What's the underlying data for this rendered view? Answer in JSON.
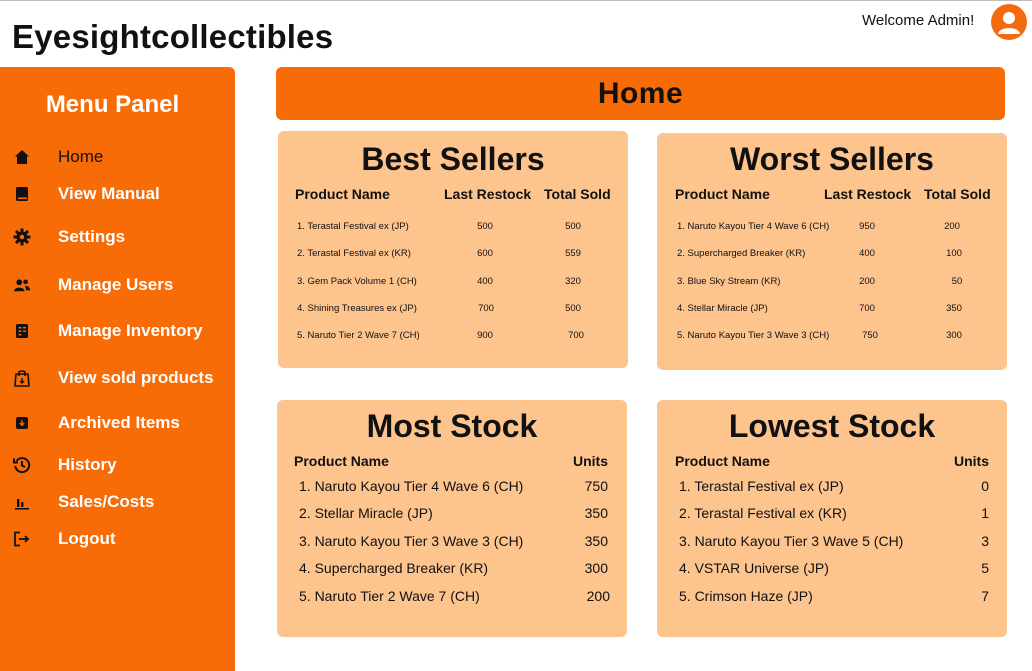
{
  "app": {
    "brand": "Eyesightcollectibles",
    "welcome": "Welcome Admin!"
  },
  "colors": {
    "accent": "#f76c07",
    "card": "#fec48e"
  },
  "sidebar": {
    "title": "Menu Panel",
    "items": [
      {
        "label": "Home",
        "icon": "home-icon"
      },
      {
        "label": "View Manual",
        "icon": "book-icon"
      },
      {
        "label": "Settings",
        "icon": "gear-icon"
      },
      {
        "label": "Manage Users",
        "icon": "users-icon"
      },
      {
        "label": "Manage Inventory",
        "icon": "inventory-icon"
      },
      {
        "label": "View sold products",
        "icon": "shopping-bag-icon"
      },
      {
        "label": "Archived Items",
        "icon": "archive-icon"
      },
      {
        "label": "History",
        "icon": "history-icon"
      },
      {
        "label": "Sales/Costs",
        "icon": "bar-chart-icon"
      },
      {
        "label": "Logout",
        "icon": "logout-icon"
      }
    ]
  },
  "main": {
    "banner": "Home",
    "best_sellers": {
      "title": "Best Sellers",
      "headers": [
        "Product Name",
        "Last Restock",
        "Total Sold"
      ],
      "rows": [
        {
          "name": "1. Terastal Festival ex (JP)",
          "restock": "500",
          "sold": "500"
        },
        {
          "name": "2. Terastal Festival ex (KR)",
          "restock": "600",
          "sold": "559"
        },
        {
          "name": "3. Gem Pack Volume 1 (CH)",
          "restock": "400",
          "sold": "320"
        },
        {
          "name": "4. Shining Treasures ex (JP)",
          "restock": "700",
          "sold": "500"
        },
        {
          "name": "5. Naruto Tier 2 Wave 7 (CH)",
          "restock": "900",
          "sold": "700"
        }
      ]
    },
    "worst_sellers": {
      "title": "Worst Sellers",
      "headers": [
        "Product Name",
        "Last Restock",
        "Total Sold"
      ],
      "rows": [
        {
          "name": "1. Naruto Kayou Tier 4 Wave 6 (CH)",
          "restock": "950",
          "sold": "200"
        },
        {
          "name": "2. Supercharged Breaker (KR)",
          "restock": "400",
          "sold": "100"
        },
        {
          "name": "3. Blue Sky Stream (KR)",
          "restock": "200",
          "sold": "50"
        },
        {
          "name": "4. Stellar Miracle (JP)",
          "restock": "700",
          "sold": "350"
        },
        {
          "name": "5. Naruto Kayou Tier 3 Wave 3 (CH)",
          "restock": "750",
          "sold": "300"
        }
      ]
    },
    "most_stock": {
      "title": "Most Stock",
      "headers": [
        "Product Name",
        "Units"
      ],
      "rows": [
        {
          "name": "1. Naruto Kayou Tier 4 Wave 6 (CH)",
          "units": "750"
        },
        {
          "name": "2. Stellar Miracle (JP)",
          "units": "350"
        },
        {
          "name": "3. Naruto Kayou Tier 3 Wave 3 (CH)",
          "units": "350"
        },
        {
          "name": "4. Supercharged Breaker (KR)",
          "units": "300"
        },
        {
          "name": "5. Naruto Tier 2 Wave 7 (CH)",
          "units": "200"
        }
      ]
    },
    "lowest_stock": {
      "title": "Lowest Stock",
      "headers": [
        "Product Name",
        "Units"
      ],
      "rows": [
        {
          "name": "1. Terastal Festival ex (JP)",
          "units": "0"
        },
        {
          "name": "2. Terastal Festival ex (KR)",
          "units": "1"
        },
        {
          "name": "3. Naruto Kayou Tier 3 Wave 5 (CH)",
          "units": "3"
        },
        {
          "name": "4. VSTAR Universe (JP)",
          "units": "5"
        },
        {
          "name": "5. Crimson Haze (JP)",
          "units": "7"
        }
      ]
    }
  }
}
